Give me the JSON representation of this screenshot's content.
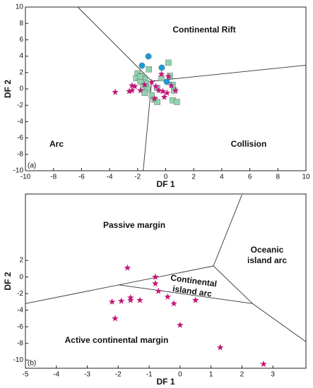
{
  "chart_data": [
    {
      "type": "scatter",
      "panel": "(a)",
      "xlabel": "DF 1",
      "ylabel": "DF 2",
      "xlim": [
        -10,
        10
      ],
      "ylim": [
        -10,
        10
      ],
      "xticks": [
        -10,
        -8,
        -6,
        -4,
        -2,
        0,
        2,
        4,
        6,
        8,
        10
      ],
      "yticks": [
        -10,
        -8,
        -6,
        -4,
        -2,
        0,
        2,
        4,
        6,
        8,
        10
      ],
      "annotations": [
        "Continental Rift",
        "Arc",
        "Collision"
      ],
      "boundaries": [
        {
          "x": [
            -6.27,
            -1.0
          ],
          "y": [
            10,
            0.95
          ]
        },
        {
          "x": [
            -1.0,
            10
          ],
          "y": [
            0.95,
            2.9
          ]
        },
        {
          "x": [
            -1.0,
            -1.6
          ],
          "y": [
            0.95,
            -10
          ]
        }
      ],
      "series": [
        {
          "marker": "square",
          "color": "#8fd3b0",
          "x": [
            -1.2,
            -2.0,
            -1.7,
            -1.5,
            -2.1,
            -1.8,
            -1.4,
            -1.6,
            -1.3,
            -1.5,
            -1.0,
            -0.8,
            -0.6,
            -0.3,
            0.2,
            0.3,
            0.5,
            0.6,
            0.5,
            0.8,
            -1.8,
            -0.6
          ],
          "y": [
            2.4,
            1.9,
            1.6,
            1.2,
            1.3,
            0.9,
            0.7,
            0.3,
            0.0,
            -0.5,
            -0.8,
            -1.3,
            -1.6,
            1.3,
            3.2,
            1.6,
            0.5,
            -0.2,
            -1.4,
            -1.6,
            1.5,
            0.1
          ]
        },
        {
          "marker": "circle",
          "color": "#1e9bd7",
          "x": [
            -1.23,
            -1.69,
            -0.28,
            0.08
          ],
          "y": [
            3.97,
            2.84,
            2.59,
            0.86
          ]
        },
        {
          "marker": "star",
          "color": "#c2187a",
          "x": [
            -3.6,
            -2.6,
            -2.4,
            -2.2,
            -2.4,
            -1.8,
            -1.5,
            -1.0,
            -0.7,
            -0.5,
            -0.2,
            -0.3,
            0.2,
            0.4,
            0.7,
            -0.8,
            -0.1,
            0.1
          ],
          "y": [
            -0.4,
            -0.3,
            -0.2,
            0.3,
            0.4,
            -0.2,
            0.5,
            0.8,
            0.3,
            -0.2,
            -0.3,
            1.8,
            1.5,
            0.4,
            -0.2,
            -1.2,
            -1.0,
            -0.5
          ]
        }
      ]
    },
    {
      "type": "scatter",
      "panel": "(b)",
      "xlabel": "DF 1",
      "ylabel": "DF 2",
      "xlim": [
        -5,
        4.07
      ],
      "ylim": [
        -11,
        10
      ],
      "xticks": [
        -5,
        -4,
        -3,
        -2,
        -1,
        0,
        1,
        2,
        3
      ],
      "yticks": [
        -10,
        -8,
        -6,
        -4,
        -2,
        0,
        2
      ],
      "annotations": [
        "Passive margin",
        [
          "Oceanic",
          "island arc"
        ],
        [
          "Continental",
          "island arc"
        ],
        "Active continental margin"
      ],
      "boundaries": [
        {
          "x": [
            -5,
            1.08
          ],
          "y": [
            -3.2,
            1.33
          ]
        },
        {
          "x": [
            -1.98,
            2.34
          ],
          "y": [
            -0.95,
            -3.2
          ]
        },
        {
          "x": [
            1.08,
            2.34,
            4.07
          ],
          "y": [
            1.33,
            -3.2,
            -7.8
          ]
        },
        {
          "x": [
            1.08,
            2.0
          ],
          "y": [
            1.33,
            9.9
          ]
        }
      ],
      "series": [
        {
          "marker": "star",
          "color": "#c2187a",
          "x": [
            -1.7,
            -0.8,
            -0.8,
            -0.7,
            -1.6,
            -1.6,
            -1.3,
            -1.9,
            -2.2,
            -0.4,
            -0.2,
            0.5,
            -2.1,
            0.0,
            1.3,
            2.7
          ],
          "y": [
            1.1,
            0.0,
            -0.8,
            -1.7,
            -2.5,
            -2.8,
            -2.8,
            -2.9,
            -3.0,
            -2.4,
            -3.2,
            -2.8,
            -5.0,
            -5.8,
            -8.5,
            -10.5
          ]
        }
      ]
    }
  ]
}
